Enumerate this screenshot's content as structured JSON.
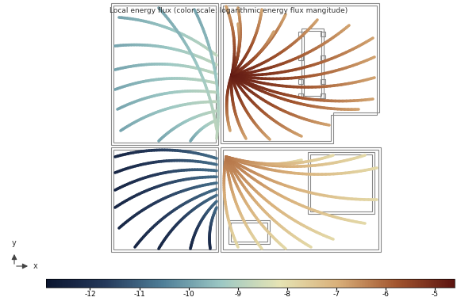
{
  "chart_data": {
    "type": "streamline",
    "title": "Local energy flux (color scale: logarithmic energy flux mangitude)",
    "xlabel": "x",
    "ylabel": "y",
    "colorbar": {
      "range": [
        -12.9,
        -4.6
      ],
      "ticks": [
        -12,
        -11,
        -10,
        -9,
        -8,
        -7,
        -6,
        -5
      ]
    },
    "streamlines": [
      {
        "values": [
          -4.7,
          -6.8
        ]
      },
      {
        "values": [
          -8.8,
          -9.9
        ]
      },
      {
        "values": [
          -10.8,
          -12.3
        ]
      },
      {
        "values": [
          -6.2,
          -7.9
        ]
      }
    ]
  }
}
